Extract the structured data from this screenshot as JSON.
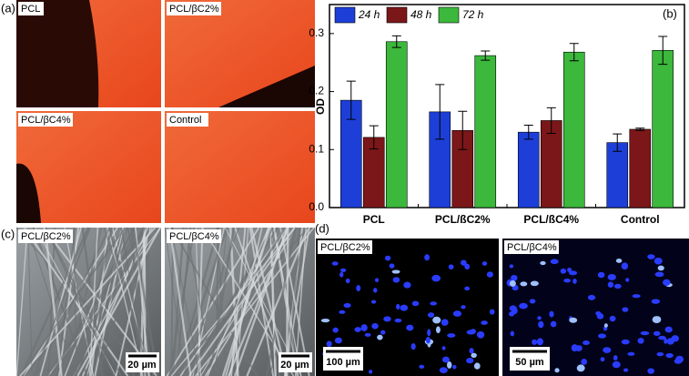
{
  "panels": {
    "a": "(a)",
    "b": "(b)",
    "c": "(c)",
    "d": "(d)"
  },
  "images_a": [
    "PCL",
    "PCL/βC2%",
    "PCL/βC4%",
    "Control"
  ],
  "images_c": [
    "PCL/βC2%",
    "PCL/βC4%"
  ],
  "scale_c": [
    "20 µm",
    "20 µm"
  ],
  "images_d": [
    "PCL/βC2%",
    "PCL/βC4%"
  ],
  "scale_d": [
    "100 µm",
    "50 µm"
  ],
  "chart_data": {
    "type": "bar",
    "ylabel": "OD",
    "categories": [
      "PCL",
      "PCL/ßC2%",
      "PCL/ßC4%",
      "Control"
    ],
    "series": [
      {
        "name": "24 h",
        "color": "#1d3fd8",
        "values": [
          0.185,
          0.165,
          0.13,
          0.112
        ],
        "errors": [
          0.033,
          0.047,
          0.012,
          0.015
        ]
      },
      {
        "name": "48 h",
        "color": "#7b1719",
        "values": [
          0.121,
          0.133,
          0.15,
          0.135
        ],
        "errors": [
          0.02,
          0.033,
          0.022,
          0.002
        ]
      },
      {
        "name": "72 h",
        "color": "#3cb83c",
        "values": [
          0.286,
          0.262,
          0.268,
          0.271
        ],
        "errors": [
          0.01,
          0.008,
          0.015,
          0.024
        ]
      }
    ],
    "ylim": [
      0,
      0.35
    ],
    "yticks": [
      {
        "value": 0,
        "label": "0.0"
      },
      0.1,
      0.2,
      0.3
    ],
    "legend": "top-left"
  }
}
